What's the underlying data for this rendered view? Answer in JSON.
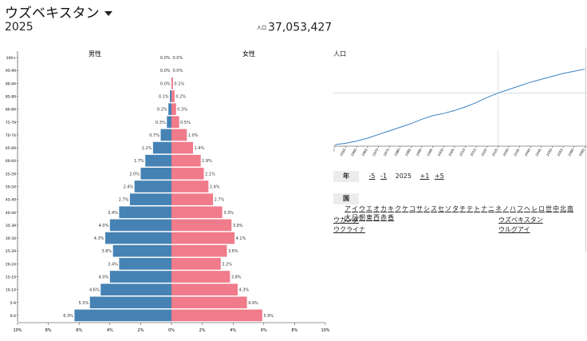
{
  "header": {
    "country_name": "ウズベキスタン",
    "year": "2025",
    "population_label": "人口",
    "population_value": "37,053,427"
  },
  "pyramid": {
    "male_label": "男性",
    "female_label": "女性",
    "male_color": "#4682b4",
    "female_color": "#f07b8a",
    "x_ticks": [
      "10%",
      "8%",
      "6%",
      "4%",
      "2%",
      "0%",
      "2%",
      "4%",
      "6%",
      "8%",
      "10%"
    ]
  },
  "chart_data": [
    {
      "type": "bar",
      "categories": [
        "100+",
        "95-99",
        "90-94",
        "85-89",
        "80-84",
        "75-79",
        "70-74",
        "65-69",
        "60-64",
        "55-59",
        "50-54",
        "45-49",
        "40-44",
        "35-39",
        "30-34",
        "25-29",
        "20-24",
        "15-19",
        "10-14",
        "5-9",
        "0-4"
      ],
      "series": [
        {
          "name": "男性",
          "values": [
            0.0,
            0.0,
            0.0,
            0.1,
            0.2,
            0.3,
            0.7,
            1.2,
            1.7,
            2.0,
            2.4,
            2.7,
            3.4,
            4.0,
            4.3,
            3.8,
            3.4,
            4.0,
            4.6,
            5.3,
            6.3
          ]
        },
        {
          "name": "女性",
          "values": [
            0.0,
            0.0,
            0.1,
            0.2,
            0.3,
            0.5,
            1.0,
            1.4,
            1.9,
            2.1,
            2.4,
            2.7,
            3.3,
            3.9,
            4.1,
            3.6,
            3.2,
            3.8,
            4.3,
            4.9,
            5.9
          ]
        }
      ],
      "xlim": [
        -10,
        10
      ],
      "value_labels": {
        "male": [
          "0.0%",
          "0.0%",
          "0.0%",
          "0.1%",
          "0.2%",
          "0.3%",
          "0.7%",
          "1.2%",
          "1.7%",
          "2.0%",
          "2.4%",
          "2.7%",
          "3.4%",
          "4.0%",
          "4.3%",
          "3.8%",
          "3.4%",
          "4.0%",
          "4.6%",
          "5.3%",
          "6.3%"
        ],
        "female": [
          "0.0%",
          "0.0%",
          "0.1%",
          "0.2%",
          "0.3%",
          "0.5%",
          "1.0%",
          "1.4%",
          "1.9%",
          "2.1%",
          "2.4%",
          "2.7%",
          "3.3%",
          "3.9%",
          "4.1%",
          "3.6%",
          "3.2%",
          "3.8%",
          "4.3%",
          "4.9%",
          "5.9%"
        ]
      }
    },
    {
      "type": "line",
      "title": "人口",
      "x": [
        1950,
        1955,
        1960,
        1965,
        1970,
        1975,
        1980,
        1985,
        1990,
        1995,
        2000,
        2005,
        2010,
        2015,
        2020,
        2025,
        2030,
        2035,
        2040,
        2045,
        2050,
        2055,
        2060,
        2065
      ],
      "series": [
        {
          "values": [
            0.0,
            0.02,
            0.05,
            0.09,
            0.14,
            0.19,
            0.24,
            0.29,
            0.35,
            0.4,
            0.43,
            0.47,
            0.52,
            0.58,
            0.65,
            0.71,
            0.76,
            0.81,
            0.86,
            0.9,
            0.94,
            0.98,
            1.01,
            1.04
          ]
        }
      ],
      "highlight_year": 2025,
      "ylim": [
        -0.02,
        1.2
      ],
      "line_color": "#3a80c0"
    }
  ],
  "year_nav": {
    "label": "年",
    "minus5": "-5",
    "minus1": "-1",
    "current": "2025",
    "plus1": "+1",
    "plus5": "+5"
  },
  "country_nav": {
    "label": "国",
    "kana": [
      "ア",
      "イ",
      "ウ",
      "エ",
      "オ",
      "カ",
      "キ",
      "ク",
      "ケ",
      "コ",
      "サ",
      "シ",
      "ス",
      "セ",
      "ソ",
      "タ",
      "チ",
      "テ",
      "ト",
      "ナ",
      "ニ",
      "ネ",
      "ノ",
      "ハ",
      "フ",
      "ヘ",
      "レ",
      "ロ",
      "世",
      "中",
      "北",
      "南",
      "大",
      "日",
      "朝",
      "東",
      "西",
      "赤",
      "香"
    ],
    "countries": [
      "ウガンダ",
      "ウズベキスタン",
      "ウクライナ",
      "ウルグアイ"
    ]
  }
}
